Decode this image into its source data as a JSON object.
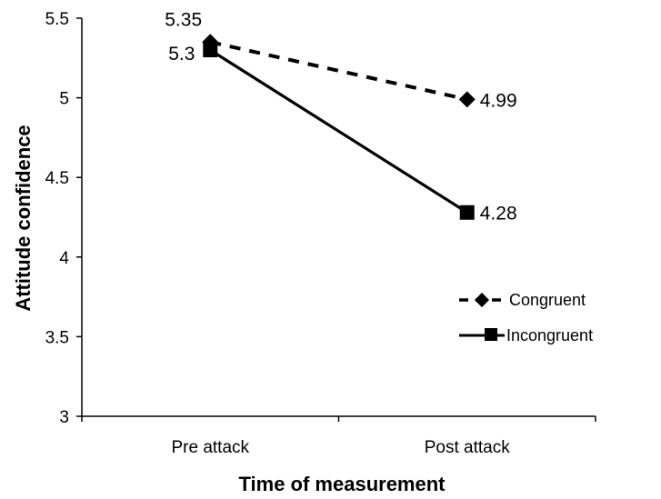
{
  "chart_data": {
    "type": "line",
    "categories": [
      "Pre attack",
      "Post attack"
    ],
    "series": [
      {
        "name": "Congruent",
        "values": [
          5.35,
          4.99
        ],
        "line_style": "dashed",
        "marker": "diamond",
        "color": "#000000",
        "labels": [
          "5.35",
          "4.99"
        ]
      },
      {
        "name": "Incongruent",
        "values": [
          5.3,
          4.28
        ],
        "line_style": "solid",
        "marker": "square",
        "color": "#000000",
        "labels": [
          "5.3",
          "4.28"
        ]
      }
    ],
    "xlabel": "Time of measurement",
    "ylabel": "Attitude confidence",
    "ylim": [
      3,
      5.5
    ],
    "yticks": [
      3,
      3.5,
      4,
      4.5,
      5,
      5.5
    ],
    "ytick_labels": [
      "3",
      "3.5",
      "4",
      "4.5",
      "5",
      "5.5"
    ],
    "grid": false,
    "legend_position": "right"
  }
}
